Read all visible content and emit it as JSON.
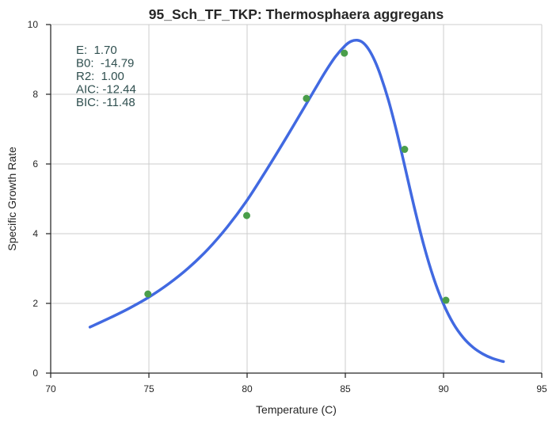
{
  "chart_data": {
    "type": "scatter",
    "title": "95_Sch_TF_TKP: Thermosphaera aggregans",
    "xlabel": "Temperature (C)",
    "ylabel": "Specific Growth Rate",
    "xlim": [
      70,
      95
    ],
    "ylim": [
      0,
      10
    ],
    "x_ticks": [
      70,
      75,
      80,
      85,
      90,
      95
    ],
    "y_ticks": [
      0,
      2,
      4,
      6,
      8,
      10
    ],
    "grid": true,
    "series": [
      {
        "kind": "points",
        "color": "#4a9e4a",
        "x": [
          74.95,
          79.98,
          83.02,
          84.95,
          88.02,
          90.12
        ],
        "y": [
          2.27,
          4.52,
          7.88,
          9.18,
          6.42,
          2.09
        ]
      },
      {
        "kind": "line",
        "color": "#4169e1",
        "x": [
          72.0,
          73.0,
          74.0,
          75.0,
          76.0,
          77.0,
          78.0,
          79.0,
          80.0,
          81.0,
          82.0,
          83.0,
          83.5,
          84.0,
          84.5,
          85.0,
          85.3,
          85.6,
          85.9,
          86.2,
          86.5,
          86.8,
          87.2,
          87.6,
          88.0,
          88.5,
          89.0,
          89.5,
          90.0,
          90.5,
          91.0,
          91.5,
          92.0,
          92.5,
          93.05
        ],
        "y": [
          1.32,
          1.58,
          1.86,
          2.18,
          2.56,
          3.01,
          3.55,
          4.2,
          4.96,
          5.84,
          6.76,
          7.71,
          8.19,
          8.66,
          9.08,
          9.4,
          9.52,
          9.55,
          9.48,
          9.28,
          8.96,
          8.53,
          7.82,
          6.96,
          6.0,
          4.78,
          3.66,
          2.72,
          1.98,
          1.42,
          1.02,
          0.74,
          0.55,
          0.42,
          0.33
        ]
      }
    ],
    "annotations": [
      "E:  1.70",
      "B0:  -14.79",
      "R2:  1.00",
      "AIC: -12.44",
      "BIC: -11.48"
    ]
  }
}
